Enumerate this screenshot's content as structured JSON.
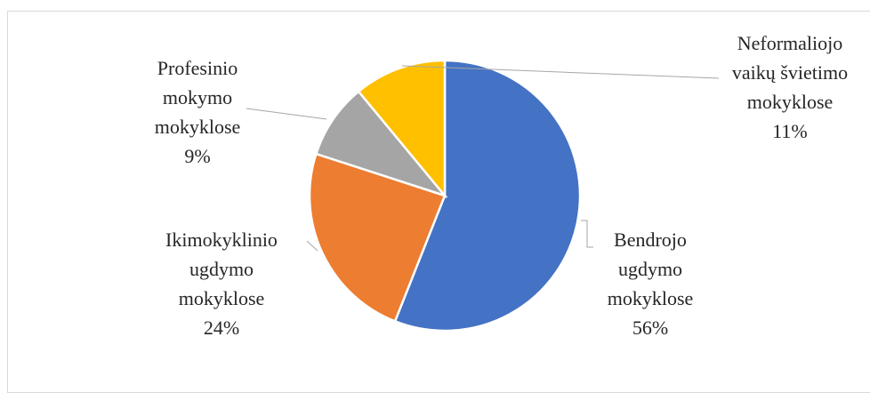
{
  "chart_data": {
    "type": "pie",
    "title": "",
    "slices": [
      {
        "category": "Bendrojo ugdymo mokyklose",
        "value": 56,
        "label": "56%",
        "color": "#4472C4",
        "label_lines": [
          "Bendrojo",
          "ugdymo",
          "mokyklose",
          "56%"
        ]
      },
      {
        "category": "Ikimokyklinio ugdymo mokyklose",
        "value": 24,
        "label": "24%",
        "color": "#ED7D31",
        "label_lines": [
          "Ikimokyklinio",
          "ugdymo",
          "mokyklose",
          "24%"
        ]
      },
      {
        "category": "Profesinio mokymo mokyklose",
        "value": 9,
        "label": "9%",
        "color": "#A5A5A5",
        "label_lines": [
          "Profesinio",
          "mokymo",
          "mokyklose",
          "9%"
        ]
      },
      {
        "category": "Neformaliojo vaikų švietimo mokyklose",
        "value": 11,
        "label": "11%",
        "color": "#FFC000",
        "label_lines": [
          "Neformaliojo",
          "vaikų švietimo",
          "mokyklose",
          "11%"
        ]
      }
    ],
    "legend": "none",
    "data_labels": "outside with leader lines"
  }
}
